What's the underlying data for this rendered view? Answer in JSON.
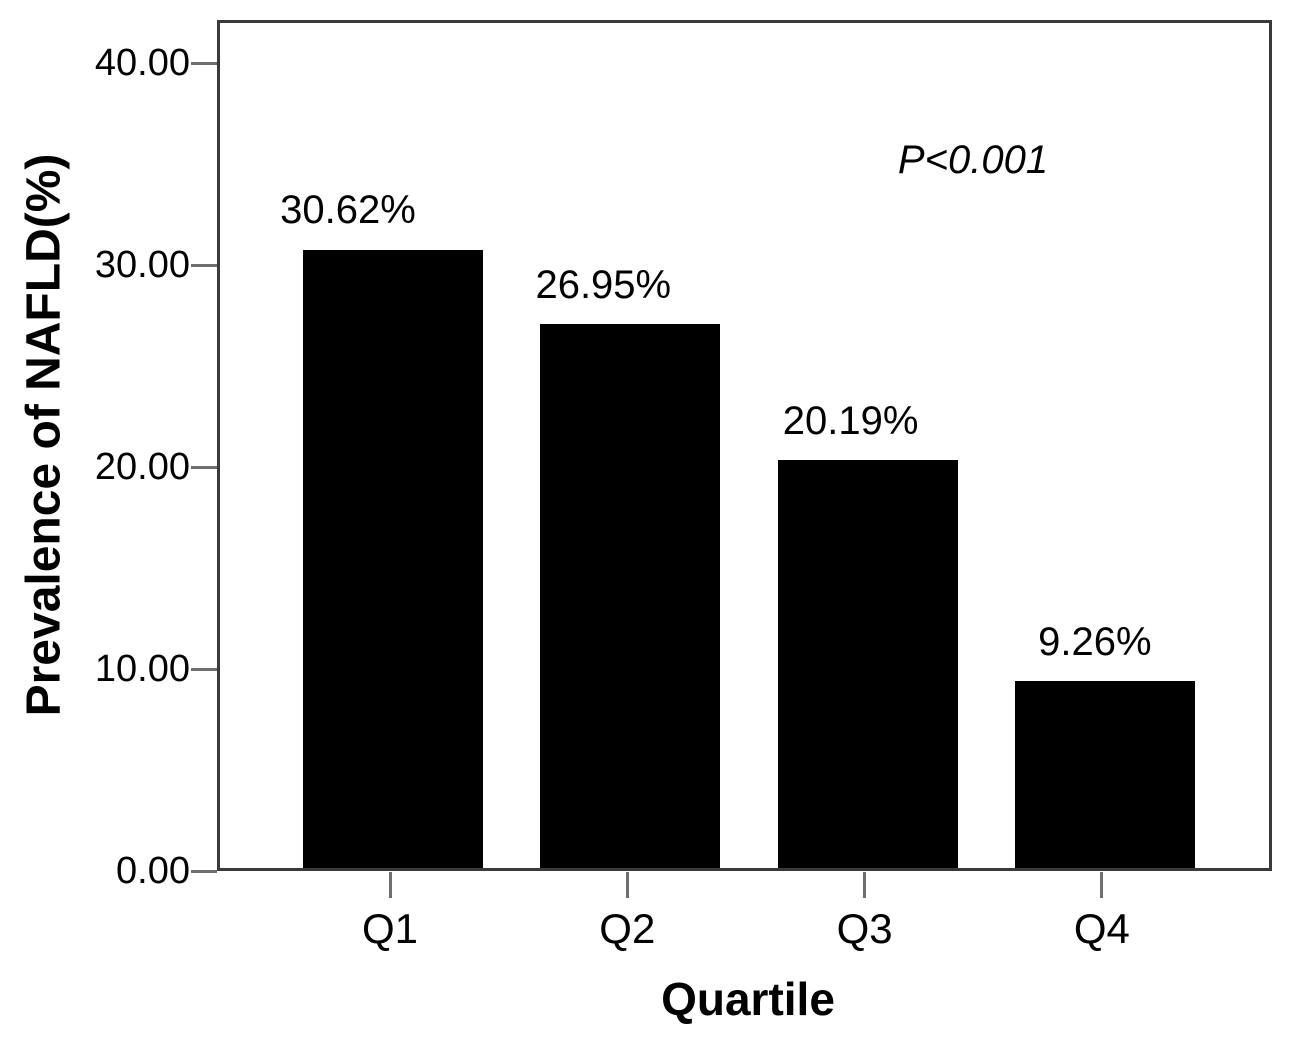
{
  "chart_data": {
    "type": "bar",
    "categories": [
      "Q1",
      "Q2",
      "Q3",
      "Q4"
    ],
    "values": [
      30.62,
      26.95,
      20.19,
      9.26
    ],
    "value_labels": [
      "30.62%",
      "26.95%",
      "20.19%",
      "9.26%"
    ],
    "title": "",
    "xlabel": "Quartile",
    "ylabel": "Prevalence of NAFLD(%)",
    "ylim": [
      0,
      42.13
    ],
    "yticks": [
      0,
      10,
      20,
      30,
      40
    ],
    "ytick_labels": [
      "0.00",
      "10.00",
      "20.00",
      "30.00",
      "40.00"
    ],
    "annotation": "P<0.001",
    "bar_color": "#000000",
    "frame_color": "#3a3a3a",
    "tick_color": "#6e6e6e",
    "grid": false,
    "legend_position": "none"
  }
}
